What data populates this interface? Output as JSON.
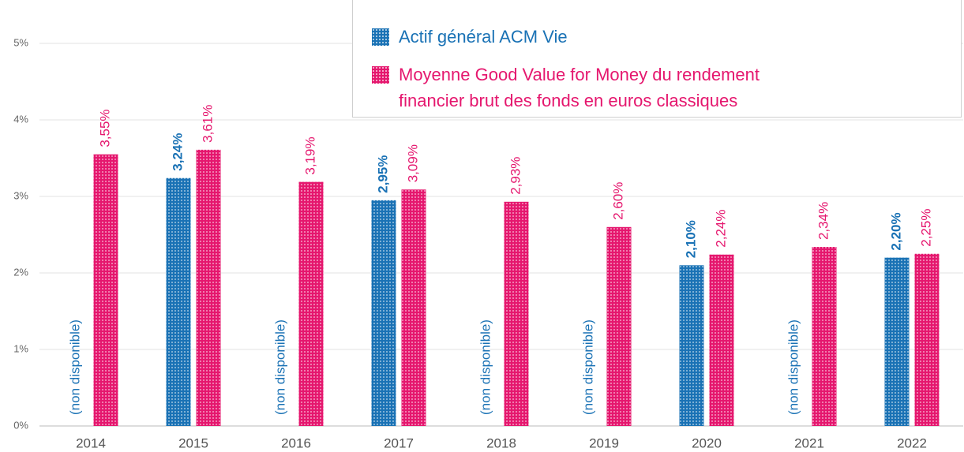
{
  "chart_data": {
    "type": "bar",
    "categories": [
      "2014",
      "2015",
      "2016",
      "2017",
      "2018",
      "2019",
      "2020",
      "2021",
      "2022"
    ],
    "series": [
      {
        "name": "Actif général ACM Vie",
        "color": "#1a72b5",
        "values": [
          null,
          3.24,
          null,
          2.95,
          null,
          null,
          2.1,
          null,
          2.2
        ],
        "value_labels": [
          "(non disponible)",
          "3,24%",
          "(non disponible)",
          "2,95%",
          "(non disponible)",
          "(non disponible)",
          "2,10%",
          "(non disponible)",
          "2,20%"
        ]
      },
      {
        "name": "Moyenne Good Value for Money du rendement financier brut des fonds en euros classiques",
        "color": "#e5176e",
        "values": [
          3.55,
          3.61,
          3.19,
          3.09,
          2.93,
          2.6,
          2.24,
          2.34,
          2.25
        ],
        "value_labels": [
          "3,55%",
          "3,61%",
          "3,19%",
          "3,09%",
          "2,93%",
          "2,60%",
          "2,24%",
          "2,34%",
          "2,25%"
        ]
      }
    ],
    "ylim": [
      0,
      5
    ],
    "yticks": [
      {
        "value": 0,
        "label": "0%"
      },
      {
        "value": 1,
        "label": "1%"
      },
      {
        "value": 2,
        "label": "2%"
      },
      {
        "value": 3,
        "label": "3%"
      },
      {
        "value": 4,
        "label": "4%"
      },
      {
        "value": 5,
        "label": "5%"
      }
    ],
    "grid": true,
    "legend": "top-right"
  }
}
